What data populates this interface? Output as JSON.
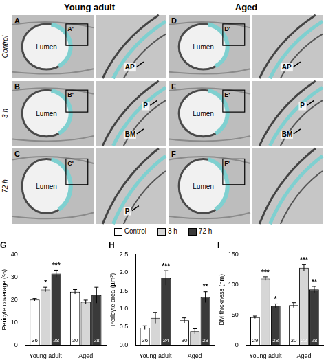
{
  "figure": {
    "columns": [
      "Young adult",
      "Aged"
    ],
    "rows": [
      "Control",
      "3 h",
      "72 h"
    ],
    "panels": [
      [
        {
          "id": "A",
          "inset": "A'",
          "labels": [
            "Lumen"
          ],
          "inset_labels": [
            "AP"
          ]
        },
        {
          "id": "D",
          "inset": "D'",
          "labels": [
            "Lumen"
          ],
          "inset_labels": [
            "AP"
          ]
        }
      ],
      [
        {
          "id": "B",
          "inset": "B'",
          "labels": [
            "Lumen"
          ],
          "inset_labels": [
            "BM",
            "P"
          ]
        },
        {
          "id": "E",
          "inset": "E'",
          "labels": [
            "Lumen"
          ],
          "inset_labels": [
            "BM",
            "P"
          ]
        }
      ],
      [
        {
          "id": "C",
          "inset": "C'",
          "labels": [
            "Lumen"
          ],
          "inset_labels": [
            "P"
          ]
        },
        {
          "id": "F",
          "inset": "F'",
          "labels": [
            "Lumen"
          ],
          "inset_labels": []
        }
      ]
    ]
  },
  "chart_data": [
    {
      "type": "bar",
      "title": "G",
      "y_label": "Pericyte coverage (%)",
      "categories": [
        "Young adult",
        "Aged"
      ],
      "ylim": [
        0,
        40
      ],
      "yticks": [
        0,
        10,
        20,
        30,
        40
      ],
      "grid": false,
      "legend": "top",
      "series": [
        {
          "name": "Control",
          "color": "#ffffff",
          "values": [
            20,
            23.5
          ],
          "errors": [
            0.5,
            1
          ],
          "n": [
            36,
            30
          ],
          "significance": [
            null,
            null
          ]
        },
        {
          "name": "3 h",
          "color": "#d6d6d6",
          "values": [
            24.5,
            19
          ],
          "errors": [
            1,
            0.8
          ],
          "n": [
            null,
            null
          ],
          "significance": [
            "*",
            null
          ]
        },
        {
          "name": "72 h",
          "color": "#3a3a3a",
          "values": [
            31.5,
            22
          ],
          "errors": [
            1.5,
            3.5
          ],
          "n": [
            28,
            28
          ],
          "significance": [
            "***",
            null
          ]
        }
      ]
    },
    {
      "type": "bar",
      "title": "H",
      "y_label": "Pericyte area (µm²)",
      "categories": [
        "Young adult",
        "Aged"
      ],
      "ylim": [
        0,
        2.5
      ],
      "yticks": [
        {
          "value": 0,
          "label": "0.0"
        },
        {
          "value": 0.5,
          "label": "0.5"
        },
        {
          "value": 1,
          "label": "1.0"
        },
        {
          "value": 1.5,
          "label": "1.5"
        },
        {
          "value": 2,
          "label": "2.0"
        },
        {
          "value": 2.5,
          "label": "2.5"
        }
      ],
      "grid": false,
      "series": [
        {
          "name": "Control",
          "color": "#ffffff",
          "values": [
            0.48,
            0.68
          ],
          "errors": [
            0.05,
            0.07
          ],
          "n": [
            36,
            30
          ],
          "significance": [
            null,
            null
          ]
        },
        {
          "name": "3 h",
          "color": "#d6d6d6",
          "values": [
            0.75,
            0.38
          ],
          "errors": [
            0.15,
            0.07
          ],
          "n": [
            null,
            null
          ],
          "significance": [
            null,
            null
          ]
        },
        {
          "name": "72 h",
          "color": "#3a3a3a",
          "values": [
            1.85,
            1.32
          ],
          "errors": [
            0.2,
            0.15
          ],
          "n": [
            24,
            28
          ],
          "significance": [
            "***",
            "**"
          ]
        }
      ]
    },
    {
      "type": "bar",
      "title": "I",
      "y_label": "BM thickness (nm)",
      "categories": [
        "Young adult",
        "Aged"
      ],
      "ylim": [
        0,
        150
      ],
      "yticks": [
        0,
        50,
        100,
        150
      ],
      "grid": false,
      "series": [
        {
          "name": "Control",
          "color": "#ffffff",
          "values": [
            46,
            66
          ],
          "errors": [
            2,
            4
          ],
          "n": [
            29,
            30
          ],
          "significance": [
            null,
            null
          ]
        },
        {
          "name": "3 h",
          "color": "#d6d6d6",
          "values": [
            110,
            128
          ],
          "errors": [
            3,
            5
          ],
          "n": [
            null,
            22
          ],
          "significance": [
            "***",
            "***"
          ]
        },
        {
          "name": "72 h",
          "color": "#3a3a3a",
          "values": [
            65,
            92
          ],
          "errors": [
            3,
            5
          ],
          "n": [
            28,
            28
          ],
          "significance": [
            "*",
            "**"
          ]
        }
      ]
    }
  ]
}
